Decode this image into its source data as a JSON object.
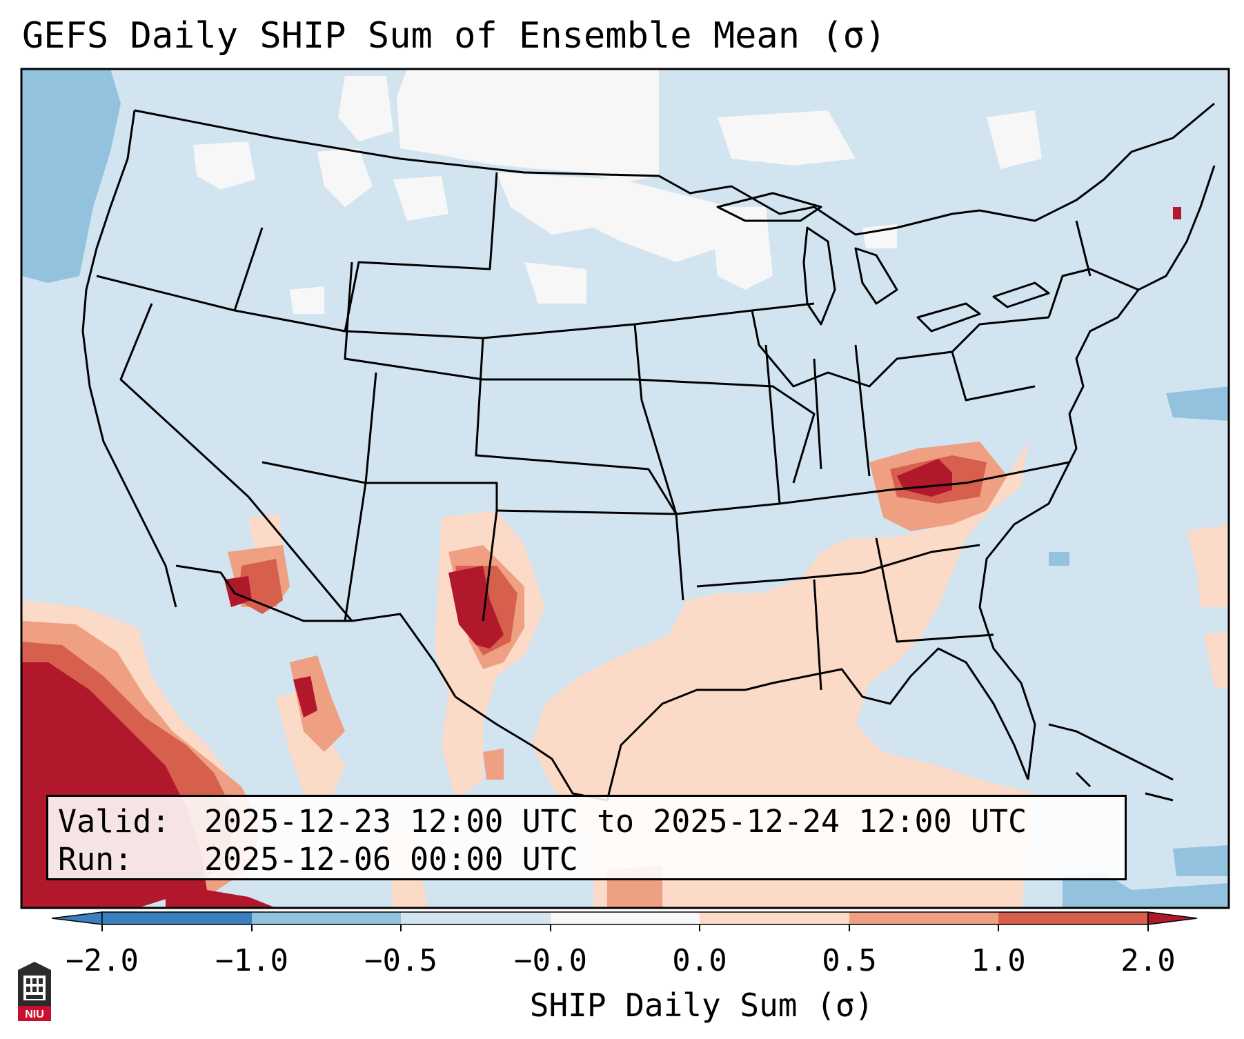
{
  "title": "GEFS Daily SHIP Sum of Ensemble Mean (σ)",
  "info": {
    "valid_label": "Valid:",
    "valid_value": "2025-12-23 12:00 UTC to 2025-12-24 12:00 UTC",
    "run_label": "Run:",
    "run_value": "2025-12-06 00:00 UTC"
  },
  "colorbar": {
    "label": "SHIP Daily Sum (σ)",
    "ticks": [
      "−2.0",
      "−1.0",
      "−0.5",
      "−0.0",
      "0.0",
      "0.5",
      "1.0",
      "2.0"
    ],
    "colors": [
      "#3a7fbe",
      "#93c2de",
      "#d1e4f0",
      "#f7f7f7",
      "#fbdac7",
      "#ef9f82",
      "#d6604d",
      "#b2182b"
    ],
    "extend": "both"
  },
  "map": {
    "region": "Continental United States",
    "background_color": "#d1e4f0"
  },
  "logo_text": "NIU"
}
